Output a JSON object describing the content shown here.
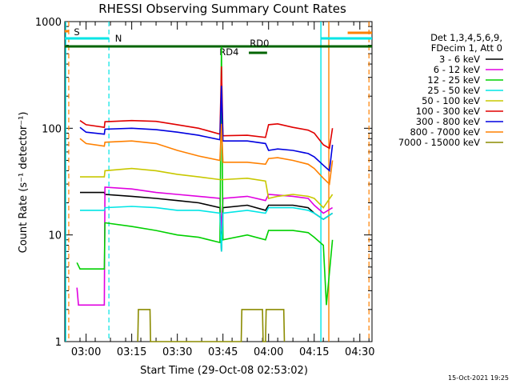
{
  "chart_data": {
    "type": "line",
    "title": "RHESSI Observing Summary Count Rates",
    "xlabel": "Start Time (29-Oct-08 02:53:02)",
    "ylabel": "Count Rate (s⁻¹ detector⁻¹)",
    "yscale": "log",
    "ylim": [
      1,
      1000
    ],
    "xlim_minutes_after_0253": [
      0,
      101
    ],
    "x_ticks": [
      {
        "label": "03:00",
        "minute": 7
      },
      {
        "label": "03:15",
        "minute": 22
      },
      {
        "label": "03:30",
        "minute": 37
      },
      {
        "label": "03:45",
        "minute": 52
      },
      {
        "label": "04:00",
        "minute": 67
      },
      {
        "label": "04:15",
        "minute": 82
      },
      {
        "label": "04:30",
        "minute": 97
      }
    ],
    "y_ticks": [
      {
        "label": "1",
        "value": 1
      },
      {
        "label": "10",
        "value": 10
      },
      {
        "label": "100",
        "value": 100
      },
      {
        "label": "1000",
        "value": 1000
      }
    ],
    "legend_title": [
      "Det 1,3,4,5,6,9,",
      "FDecim 1, Att 0"
    ],
    "series": [
      {
        "name": "3 - 6 keV",
        "color": "#000000",
        "points": [
          [
            5,
            25
          ],
          [
            13,
            25
          ],
          [
            13.2,
            24
          ],
          [
            22,
            23
          ],
          [
            30,
            22
          ],
          [
            37,
            21
          ],
          [
            44,
            20
          ],
          [
            51,
            18
          ],
          [
            51.5,
            7
          ],
          [
            52,
            18
          ],
          [
            60,
            19
          ],
          [
            66,
            17
          ],
          [
            67,
            19
          ],
          [
            75,
            19
          ],
          [
            80,
            18
          ],
          [
            82,
            16
          ],
          [
            85,
            14
          ],
          [
            88,
            16
          ]
        ]
      },
      {
        "name": "6 - 12 keV",
        "color": "#e000e0",
        "points": [
          [
            4,
            3.2
          ],
          [
            4.5,
            2.2
          ],
          [
            13,
            2.2
          ],
          [
            13.2,
            28
          ],
          [
            22,
            27
          ],
          [
            30,
            25
          ],
          [
            37,
            24
          ],
          [
            44,
            23
          ],
          [
            51,
            22
          ],
          [
            51.5,
            11
          ],
          [
            52,
            22
          ],
          [
            60,
            23
          ],
          [
            66,
            21
          ],
          [
            67,
            24
          ],
          [
            75,
            23
          ],
          [
            80,
            22
          ],
          [
            82,
            19
          ],
          [
            85,
            16
          ],
          [
            88,
            18
          ]
        ]
      },
      {
        "name": "12 - 25 keV",
        "color": "#00d000",
        "points": [
          [
            4,
            5.5
          ],
          [
            5,
            4.8
          ],
          [
            13,
            4.8
          ],
          [
            13.2,
            13
          ],
          [
            22,
            12
          ],
          [
            30,
            11
          ],
          [
            37,
            10
          ],
          [
            44,
            9.5
          ],
          [
            51,
            8.5
          ],
          [
            51.5,
            580
          ],
          [
            52,
            9
          ],
          [
            60,
            10
          ],
          [
            66,
            9
          ],
          [
            67,
            11
          ],
          [
            75,
            11
          ],
          [
            80,
            10.5
          ],
          [
            82,
            9.5
          ],
          [
            85,
            8
          ],
          [
            86,
            2.2
          ],
          [
            88,
            9
          ]
        ]
      },
      {
        "name": "25 - 50 keV",
        "color": "#00e5e5",
        "points": [
          [
            5,
            17
          ],
          [
            13,
            17
          ],
          [
            13.2,
            18
          ],
          [
            22,
            18.5
          ],
          [
            30,
            18
          ],
          [
            37,
            17
          ],
          [
            44,
            17
          ],
          [
            51,
            16
          ],
          [
            51.5,
            7
          ],
          [
            52,
            16
          ],
          [
            60,
            17
          ],
          [
            66,
            16
          ],
          [
            67,
            18
          ],
          [
            75,
            18
          ],
          [
            80,
            17
          ],
          [
            82,
            16
          ],
          [
            85,
            14
          ],
          [
            88,
            16
          ]
        ]
      },
      {
        "name": "50 - 100 keV",
        "color": "#c8c800",
        "points": [
          [
            5,
            35
          ],
          [
            13,
            35
          ],
          [
            13.2,
            40
          ],
          [
            22,
            42
          ],
          [
            30,
            40
          ],
          [
            37,
            37
          ],
          [
            44,
            35
          ],
          [
            51,
            33
          ],
          [
            52,
            33
          ],
          [
            60,
            34
          ],
          [
            66,
            32
          ],
          [
            67,
            22
          ],
          [
            70,
            23
          ],
          [
            75,
            24
          ],
          [
            80,
            23
          ],
          [
            82,
            22
          ],
          [
            85,
            18
          ],
          [
            88,
            24
          ]
        ]
      },
      {
        "name": "100 - 300 keV",
        "color": "#e00000",
        "points": [
          [
            5,
            118
          ],
          [
            7,
            108
          ],
          [
            13,
            102
          ],
          [
            13.2,
            115
          ],
          [
            22,
            118
          ],
          [
            30,
            116
          ],
          [
            37,
            108
          ],
          [
            44,
            100
          ],
          [
            51,
            88
          ],
          [
            51.5,
            380
          ],
          [
            52,
            85
          ],
          [
            60,
            86
          ],
          [
            66,
            82
          ],
          [
            67,
            108
          ],
          [
            70,
            110
          ],
          [
            75,
            102
          ],
          [
            80,
            96
          ],
          [
            82,
            90
          ],
          [
            85,
            70
          ],
          [
            87,
            65
          ],
          [
            88,
            100
          ]
        ]
      },
      {
        "name": "300 - 800 keV",
        "color": "#0000e0",
        "points": [
          [
            5,
            102
          ],
          [
            7,
            92
          ],
          [
            13,
            88
          ],
          [
            13.2,
            98
          ],
          [
            22,
            100
          ],
          [
            30,
            97
          ],
          [
            37,
            92
          ],
          [
            44,
            86
          ],
          [
            51,
            78
          ],
          [
            51.5,
            250
          ],
          [
            52,
            76
          ],
          [
            60,
            76
          ],
          [
            66,
            72
          ],
          [
            67,
            62
          ],
          [
            70,
            64
          ],
          [
            75,
            62
          ],
          [
            80,
            58
          ],
          [
            82,
            54
          ],
          [
            85,
            45
          ],
          [
            87,
            40
          ],
          [
            88,
            70
          ]
        ]
      },
      {
        "name": "800 - 7000 keV",
        "color": "#ff8000",
        "points": [
          [
            5,
            80
          ],
          [
            7,
            72
          ],
          [
            13,
            68
          ],
          [
            13.2,
            74
          ],
          [
            22,
            76
          ],
          [
            30,
            72
          ],
          [
            37,
            62
          ],
          [
            44,
            55
          ],
          [
            51,
            50
          ],
          [
            51.5,
            110
          ],
          [
            52,
            48
          ],
          [
            60,
            48
          ],
          [
            66,
            46
          ],
          [
            67,
            52
          ],
          [
            70,
            53
          ],
          [
            75,
            50
          ],
          [
            80,
            46
          ],
          [
            82,
            42
          ],
          [
            85,
            34
          ],
          [
            87,
            30
          ],
          [
            88,
            50
          ]
        ]
      },
      {
        "name": "7000 - 15000 keV",
        "color": "#8b8b00",
        "points": [
          [
            24,
            1
          ],
          [
            24.2,
            2
          ],
          [
            28,
            2
          ],
          [
            28.2,
            1
          ],
          [
            58,
            1
          ],
          [
            58.2,
            2
          ],
          [
            65,
            2
          ],
          [
            65.2,
            1
          ],
          [
            66,
            1
          ],
          [
            66.2,
            2
          ],
          [
            72,
            2
          ],
          [
            72.2,
            1
          ]
        ]
      }
    ],
    "annotations": [
      {
        "text": "S",
        "color": "#ff8000"
      },
      {
        "text": "N",
        "color": "#00e5e5"
      },
      {
        "text": "RD0",
        "color": "#006400"
      },
      {
        "text": "RD4",
        "color": "#006400"
      }
    ],
    "footer_timestamp": "15-Oct-2021 19:25"
  }
}
